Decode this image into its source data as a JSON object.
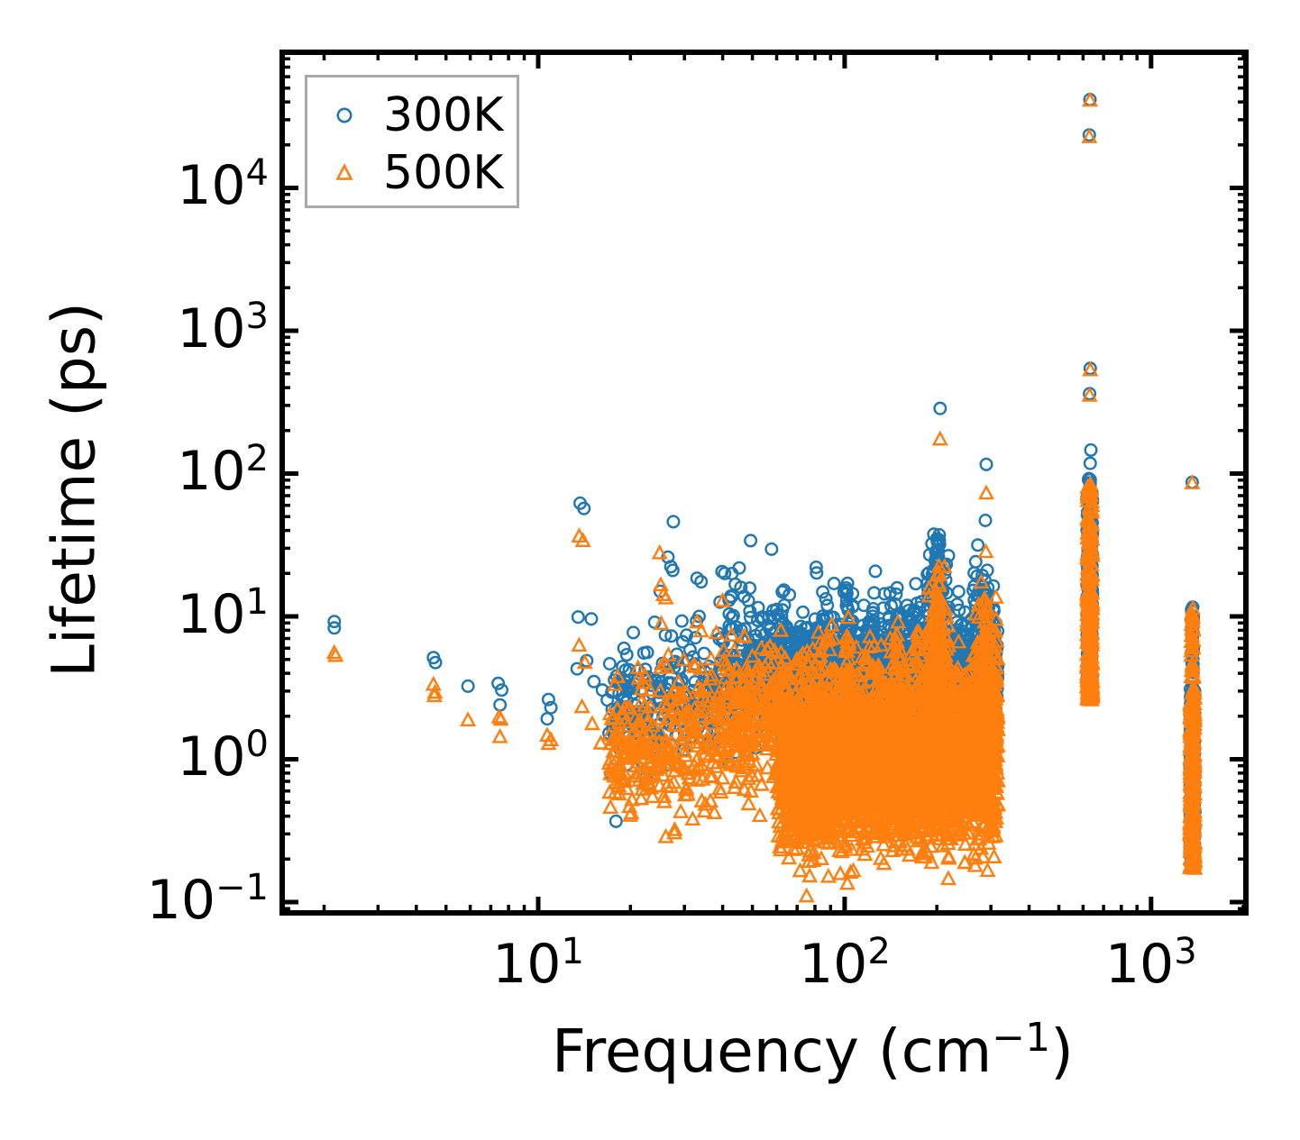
{
  "chart_data": {
    "type": "scatter",
    "xscale": "log",
    "yscale": "log",
    "xlabel": "Frequency (cm−1)",
    "ylabel": "Lifetime (ps)",
    "xlabel_parts": {
      "pre": "Frequency (cm",
      "sup": "−1",
      "post": ")"
    },
    "xlim": [
      1.46,
      2040
    ],
    "ylim": [
      0.084,
      89000
    ],
    "x_major_ticks": [
      10,
      100,
      1000
    ],
    "y_major_ticks": [
      0.1,
      1,
      10,
      100,
      1000,
      10000
    ],
    "legend_position": "upper left",
    "grid": false,
    "seed": 20177,
    "series": [
      {
        "name": "300K",
        "marker": "circle",
        "color": "#1f77b4",
        "points": [
          [
            2.16,
            9.2
          ],
          [
            2.16,
            8.3
          ],
          [
            4.55,
            5.15
          ],
          [
            4.62,
            4.75
          ],
          [
            5.9,
            3.25
          ],
          [
            7.4,
            3.4
          ],
          [
            7.6,
            3.05
          ],
          [
            7.5,
            2.4
          ],
          [
            10.8,
            2.62
          ],
          [
            11.0,
            2.3
          ],
          [
            10.7,
            1.92
          ],
          [
            13.7,
            62
          ],
          [
            14.1,
            57
          ],
          [
            13.5,
            9.9
          ],
          [
            14.9,
            9.6
          ],
          [
            14.4,
            4.9
          ],
          [
            13.4,
            4.3
          ],
          [
            15.2,
            3.5
          ],
          [
            16.2,
            3.05
          ],
          [
            16.8,
            2.6
          ],
          [
            18,
            2.2
          ],
          [
            19,
            2.6
          ],
          [
            17.5,
            1.65
          ],
          [
            22.7,
            5.6
          ],
          [
            24,
            9.1
          ],
          [
            25,
            15
          ],
          [
            26.5,
            26
          ],
          [
            27.1,
            22.3
          ],
          [
            27.5,
            21
          ],
          [
            27.6,
            46
          ],
          [
            26,
            7.4
          ],
          [
            27.2,
            7.3
          ],
          [
            26.3,
            4.45
          ],
          [
            27.8,
            4.4
          ],
          [
            28.5,
            3.1
          ],
          [
            23.5,
            2.9
          ],
          [
            21,
            1.75
          ],
          [
            33,
            18.5
          ],
          [
            34,
            17.5
          ],
          [
            33.5,
            10
          ],
          [
            32,
            5.2
          ],
          [
            35,
            4.1
          ],
          [
            39.8,
            20.6
          ],
          [
            40.6,
            20
          ],
          [
            39.2,
            12.6
          ],
          [
            38.7,
            7.6
          ],
          [
            39.7,
            7.1
          ],
          [
            40.2,
            6.6
          ],
          [
            41,
            4.6
          ],
          [
            47,
            13.8
          ],
          [
            48.5,
            12.9
          ],
          [
            46,
            8
          ],
          [
            52,
            9.4
          ],
          [
            55,
            7.5
          ],
          [
            50,
            5.9
          ],
          [
            58,
            6.3
          ],
          [
            44,
            3.3
          ],
          [
            42,
            2.2
          ],
          [
            62,
            8.8
          ],
          [
            65,
            8.2
          ],
          [
            70,
            7
          ],
          [
            75,
            6.6
          ],
          [
            68,
            5
          ],
          [
            80,
            6.9
          ],
          [
            85,
            6.7
          ],
          [
            95,
            6.4
          ],
          [
            205,
            286
          ],
          [
            200,
            35
          ],
          [
            198,
            25
          ],
          [
            290,
            116
          ],
          [
            288,
            47
          ],
          [
            292,
            21
          ],
          [
            270,
            14
          ],
          [
            632,
            41500
          ],
          [
            629,
            23500
          ],
          [
            633,
            545
          ],
          [
            630,
            362
          ],
          [
            636,
            146
          ],
          [
            633,
            118
          ],
          [
            627,
            92
          ],
          [
            1362,
            87
          ],
          [
            1368,
            11.6
          ],
          [
            1358,
            10.9
          ],
          [
            1365,
            9.8
          ],
          [
            1370,
            8.6
          ],
          [
            1360,
            7.9
          ],
          [
            1366,
            7.2
          ]
        ],
        "bands": [
          {
            "xlog": [
              1.23,
              1.78
            ],
            "mu": [
              0.3,
              0.57
            ],
            "sigma": 0.2,
            "n": 320
          },
          {
            "xlog": [
              1.78,
              2.5
            ],
            "mu": [
              0.56,
              0.58
            ],
            "sigma": 0.16,
            "n": 2300
          },
          {
            "xlog": [
              1.62,
              2.46
            ],
            "mu": [
              0.82,
              0.8
            ],
            "sigma": 0.22,
            "n": 260
          },
          {
            "xlog": [
              2.27,
              2.34
            ],
            "mu": [
              0.95,
              0.95
            ],
            "sigma": 0.28,
            "n": 130
          },
          {
            "xlog": [
              2.42,
              2.49
            ],
            "mu": [
              0.82,
              0.82
            ],
            "sigma": 0.24,
            "n": 110
          }
        ],
        "columns": [
          {
            "x": 2.8,
            "w": 0.018,
            "y": [
              0.43,
              1.96
            ],
            "n": 230,
            "bias": 1.3
          },
          {
            "x": 3.135,
            "w": 0.016,
            "y": [
              -0.74,
              0.5
            ],
            "n": 210,
            "bias": 1.2
          },
          {
            "x": 3.135,
            "w": 0.008,
            "y": [
              0.58,
              1.06
            ],
            "n": 22,
            "bias": 1.0
          },
          {
            "x": 2.305,
            "w": 0.01,
            "y": [
              0.7,
              1.55
            ],
            "n": 42,
            "bias": 1.3
          },
          {
            "x": 2.46,
            "w": 0.01,
            "y": [
              0.7,
              1.35
            ],
            "n": 28,
            "bias": 1.3
          },
          {
            "x": 2.01,
            "w": 0.01,
            "y": [
              0.6,
              1.25
            ],
            "n": 24,
            "bias": 1.3
          },
          {
            "x": 2.09,
            "w": 0.01,
            "y": [
              0.55,
              1.1
            ],
            "n": 20,
            "bias": 1.3
          },
          {
            "x": 2.17,
            "w": 0.01,
            "y": [
              0.6,
              1.2
            ],
            "n": 22,
            "bias": 1.3
          },
          {
            "x": 2.24,
            "w": 0.01,
            "y": [
              0.6,
              1.1
            ],
            "n": 20,
            "bias": 1.3
          },
          {
            "x": 1.93,
            "w": 0.01,
            "y": [
              0.55,
              1.05
            ],
            "n": 18,
            "bias": 1.3
          },
          {
            "x": 1.86,
            "w": 0.01,
            "y": [
              0.5,
              0.95
            ],
            "n": 15,
            "bias": 1.3
          }
        ]
      },
      {
        "name": "500K",
        "marker": "triangle",
        "color": "#ff7f0e",
        "points": [
          [
            2.16,
            5.5
          ],
          [
            2.18,
            5.25
          ],
          [
            4.55,
            3.3
          ],
          [
            4.6,
            2.9
          ],
          [
            4.58,
            2.75
          ],
          [
            5.9,
            1.86
          ],
          [
            7.45,
            1.95
          ],
          [
            7.55,
            1.88
          ],
          [
            7.5,
            1.42
          ],
          [
            10.7,
            1.45
          ],
          [
            11.0,
            1.35
          ],
          [
            10.8,
            1.27
          ],
          [
            13.6,
            36
          ],
          [
            14.0,
            33.5
          ],
          [
            13.6,
            6.2
          ],
          [
            14.2,
            4.7
          ],
          [
            13.9,
            2.3
          ],
          [
            15,
            1.75
          ],
          [
            16,
            1.28
          ],
          [
            17.2,
            0.78
          ],
          [
            19,
            1.1
          ],
          [
            18,
            1.42
          ],
          [
            24.9,
            27.5
          ],
          [
            25.1,
            16.4
          ],
          [
            25.6,
            14
          ],
          [
            26.1,
            13.3
          ],
          [
            25.2,
            8.8
          ],
          [
            26.6,
            5.3
          ],
          [
            25.9,
            4.6
          ],
          [
            26.3,
            4.35
          ],
          [
            22,
            3.4
          ],
          [
            21.5,
            1.15
          ],
          [
            23,
            0.95
          ],
          [
            28,
            2.2
          ],
          [
            33,
            9
          ],
          [
            34,
            7.8
          ],
          [
            32.5,
            4.4
          ],
          [
            40,
            12.7
          ],
          [
            40.3,
            5.7
          ],
          [
            40.7,
            4.5
          ],
          [
            41.1,
            4.2
          ],
          [
            39,
            2.9
          ],
          [
            47,
            7.2
          ],
          [
            50,
            5.2
          ],
          [
            55,
            4.4
          ],
          [
            44,
            1.9
          ],
          [
            52,
            2.6
          ],
          [
            58,
            3.4
          ],
          [
            62,
            5.5
          ],
          [
            70,
            4.8
          ],
          [
            80,
            4.6
          ],
          [
            90,
            4.2
          ],
          [
            205,
            172
          ],
          [
            202,
            20
          ],
          [
            290,
            72
          ],
          [
            289,
            28
          ],
          [
            291,
            11
          ],
          [
            632,
            40500
          ],
          [
            629,
            22500
          ],
          [
            633,
            525
          ],
          [
            630,
            348
          ],
          [
            634,
            83
          ],
          [
            631,
            75
          ],
          [
            1362,
            85
          ],
          [
            1368,
            11.2
          ],
          [
            1358,
            10.4
          ],
          [
            1365,
            9.2
          ],
          [
            1363,
            8.0
          ],
          [
            1367,
            6.8
          ],
          [
            1360,
            6.0
          ],
          [
            1364,
            4.6
          ],
          [
            1366,
            4.1
          ],
          [
            1361,
            3.8
          ]
        ],
        "bands": [
          {
            "xlog": [
              1.23,
              1.78
            ],
            "mu": [
              0.02,
              0.25
            ],
            "sigma": 0.24,
            "n": 430
          },
          {
            "xlog": [
              1.78,
              2.5
            ],
            "mu": [
              -0.06,
              -0.02
            ],
            "sigma": 0.27,
            "n": 3400
          },
          {
            "xlog": [
              1.62,
              2.5
            ],
            "mu": [
              0.42,
              0.45
            ],
            "sigma": 0.2,
            "n": 330
          },
          {
            "xlog": [
              2.27,
              2.34
            ],
            "mu": [
              0.55,
              0.55
            ],
            "sigma": 0.33,
            "n": 140
          },
          {
            "xlog": [
              2.42,
              2.5
            ],
            "mu": [
              0.5,
              0.5
            ],
            "sigma": 0.28,
            "n": 110
          }
        ],
        "columns": [
          {
            "x": 2.8,
            "w": 0.018,
            "y": [
              0.41,
              1.9
            ],
            "n": 280,
            "bias": 1.4
          },
          {
            "x": 3.135,
            "w": 0.016,
            "y": [
              -0.77,
              0.5
            ],
            "n": 270,
            "bias": 1.2
          },
          {
            "x": 3.135,
            "w": 0.008,
            "y": [
              0.55,
              1.02
            ],
            "n": 20,
            "bias": 1.0
          },
          {
            "x": 2.305,
            "w": 0.01,
            "y": [
              0.6,
              1.35
            ],
            "n": 38,
            "bias": 1.3
          },
          {
            "x": 2.46,
            "w": 0.01,
            "y": [
              0.6,
              1.15
            ],
            "n": 24,
            "bias": 1.3
          },
          {
            "x": 2.01,
            "w": 0.01,
            "y": [
              0.45,
              1.0
            ],
            "n": 20,
            "bias": 1.3
          },
          {
            "x": 2.17,
            "w": 0.01,
            "y": [
              0.45,
              0.95
            ],
            "n": 18,
            "bias": 1.3
          },
          {
            "x": 2.24,
            "w": 0.01,
            "y": [
              0.45,
              0.9
            ],
            "n": 16,
            "bias": 1.3
          }
        ]
      }
    ]
  }
}
